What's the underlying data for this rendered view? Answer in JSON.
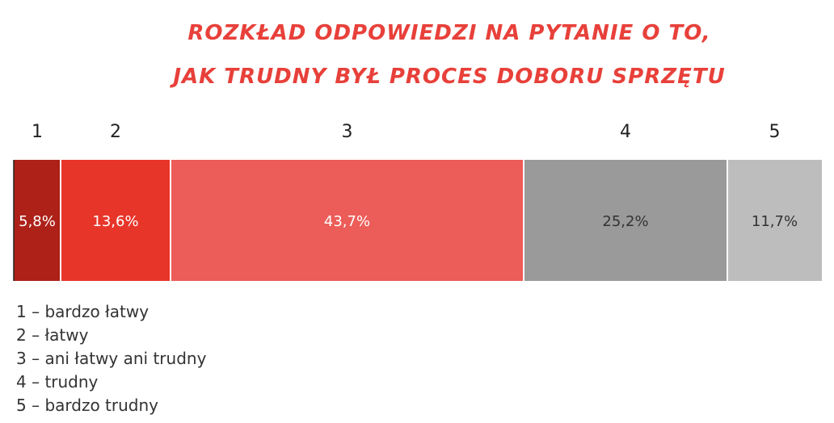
{
  "title_lines": [
    "ROZKŁAD ODPOWIEDZI NA PYTANIE O TO,",
    "JAK TRUDNY BYŁ PROCES DOBORU SPRZĘTU"
  ],
  "chart_data": {
    "type": "bar",
    "orientation": "horizontal-stacked-100",
    "categories": [
      "1",
      "2",
      "3",
      "4",
      "5"
    ],
    "values": [
      5.8,
      13.6,
      43.7,
      25.2,
      11.7
    ],
    "value_labels": [
      "5,8%",
      "13,6%",
      "43,7%",
      "25,2%",
      "11,7%"
    ],
    "colors": [
      "#ad2119",
      "#e8352a",
      "#ec5c58",
      "#9a9a9a",
      "#bdbdbd"
    ],
    "label_colors": [
      "#ffffff",
      "#ffffff",
      "#ffffff",
      "#333333",
      "#333333"
    ],
    "title": "ROZKŁAD ODPOWIEDZI NA PYTANIE O TO, JAK TRUDNY BYŁ PROCES DOBORU SPRZĘTU",
    "xlim": [
      0,
      100
    ],
    "grid": false,
    "legend_position": "bottom-left"
  },
  "legend": [
    "1 – bardzo łatwy",
    "2 – łatwy",
    "3 – ani łatwy ani trudny",
    "4 – trudny",
    "5 – bardzo trudny"
  ]
}
